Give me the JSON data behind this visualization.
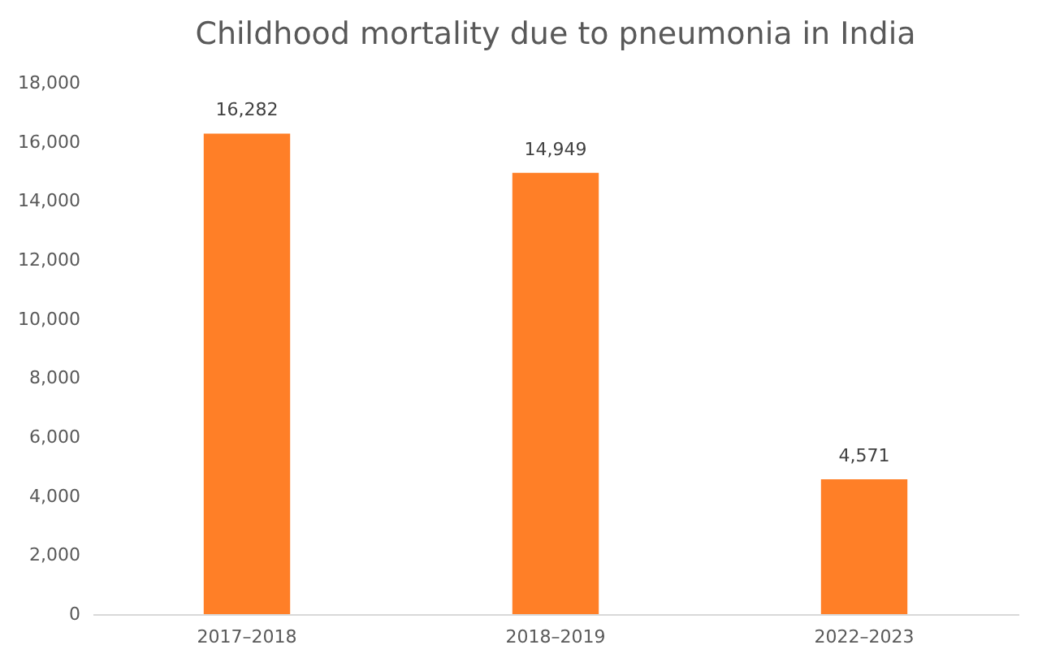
{
  "chart_data": {
    "type": "bar",
    "title": "Childhood mortality due to pneumonia in India",
    "categories": [
      "2017–2018",
      "2018–2019",
      "2022–2023"
    ],
    "values": [
      16282,
      14949,
      4571
    ],
    "value_labels": [
      "16,282",
      "14,949",
      "4,571"
    ],
    "color": "#ff7f27",
    "ylim": [
      0,
      18000
    ],
    "yticks": [
      0,
      {
        "value": 2000,
        "label": "2,000"
      },
      {
        "value": 4000,
        "label": "4,000"
      },
      {
        "value": 6000,
        "label": "6,000"
      },
      {
        "value": 8000,
        "label": "8,000"
      },
      {
        "value": 10000,
        "label": "10,000"
      },
      {
        "value": 12000,
        "label": "12,000"
      },
      {
        "value": 14000,
        "label": "14,000"
      },
      {
        "value": 16000,
        "label": "16,000"
      },
      {
        "value": 18000,
        "label": "18,000"
      }
    ],
    "grid": false
  }
}
